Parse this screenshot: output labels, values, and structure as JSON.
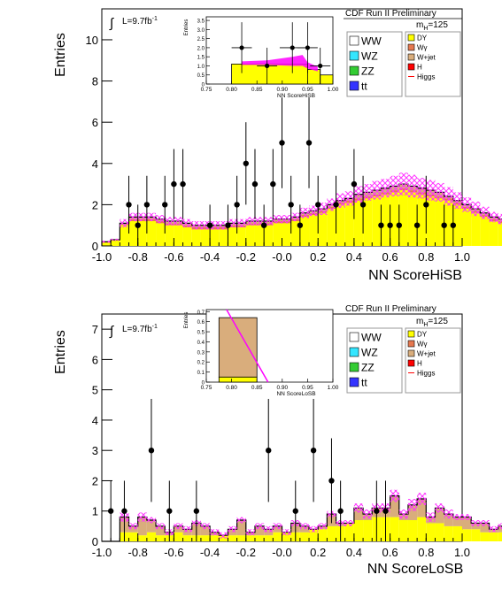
{
  "chart_data": [
    {
      "type": "bar",
      "xlabel": "NN ScoreHiSB",
      "ylabel": "Entries",
      "header": "CDF Run II Preliminary",
      "lumi_prefix": "L=9.7fb",
      "lumi_sup": "-1",
      "mass_prefix": "m",
      "mass_sub": "H",
      "mass_suffix": "=125",
      "xlim": [
        -1.0,
        1.0
      ],
      "ylim": [
        0,
        11.5
      ],
      "xticks": [
        "-1.0",
        "-0.8",
        "-0.6",
        "-0.4",
        "-0.2",
        "-0.0",
        "0.2",
        "0.4",
        "0.6",
        "0.8",
        "1.0"
      ],
      "yticks": [
        "0",
        "2",
        "4",
        "6",
        "8",
        "10"
      ],
      "bin_edges": [
        -1.0,
        0.05
      ],
      "series": [
        {
          "name": "DY",
          "color": "#ffff00",
          "values": [
            0.2,
            0.3,
            1.0,
            1.2,
            1.2,
            1.2,
            1.1,
            1.0,
            1.0,
            0.9,
            0.8,
            0.8,
            0.8,
            0.8,
            0.9,
            0.9,
            1.0,
            1.0,
            1.0,
            1.1,
            1.1,
            1.2,
            1.4,
            1.5,
            1.6,
            1.8,
            2.0,
            2.1,
            2.2,
            2.3,
            2.4,
            2.5,
            2.6,
            2.7,
            2.6,
            2.5,
            2.4,
            2.3,
            2.2,
            2.0,
            1.8,
            1.6,
            1.4,
            1.2,
            1.1,
            1.0,
            1.0,
            0.9,
            0.9,
            0.8,
            0.8,
            0.8,
            0.8,
            0.9,
            0.9,
            0.9,
            0.9,
            0.8,
            0.6,
            0.3
          ]
        },
        {
          "name": "Wγ",
          "color": "#e6784f",
          "values": [
            0.0,
            0.0,
            0.05,
            0.1,
            0.1,
            0.1,
            0.1,
            0.1,
            0.1,
            0.1,
            0.1,
            0.1,
            0.1,
            0.1,
            0.1,
            0.1,
            0.1,
            0.1,
            0.1,
            0.1,
            0.1,
            0.1,
            0.1,
            0.1,
            0.1,
            0.1,
            0.1,
            0.1,
            0.1,
            0.1,
            0.1,
            0.1,
            0.1,
            0.1,
            0.1,
            0.1,
            0.1,
            0.1,
            0.1,
            0.1,
            0.1,
            0.1,
            0.1,
            0.1,
            0.1,
            0.1,
            0.1,
            0.1,
            0.1,
            0.1,
            0.1,
            0.1,
            0.1,
            0.1,
            0.1,
            0.1,
            0.1,
            0.1,
            0.05,
            0.0
          ]
        },
        {
          "name": "W+jet",
          "color": "#d9ad7c",
          "values": [
            0.0,
            0.0,
            0.05,
            0.1,
            0.1,
            0.1,
            0.1,
            0.1,
            0.1,
            0.1,
            0.1,
            0.1,
            0.1,
            0.1,
            0.1,
            0.1,
            0.1,
            0.1,
            0.1,
            0.1,
            0.1,
            0.1,
            0.1,
            0.1,
            0.1,
            0.1,
            0.1,
            0.1,
            0.2,
            0.2,
            0.2,
            0.2,
            0.2,
            0.2,
            0.2,
            0.2,
            0.2,
            0.2,
            0.1,
            0.1,
            0.1,
            0.1,
            0.1,
            0.1,
            0.1,
            0.1,
            0.1,
            0.1,
            0.1,
            0.1,
            0.1,
            0.1,
            0.1,
            0.1,
            0.1,
            0.1,
            0.1,
            0.1,
            0.05,
            0.0
          ]
        }
      ],
      "band_halfwidth": [
        0.05,
        0.05,
        0.2,
        0.2,
        0.2,
        0.2,
        0.2,
        0.2,
        0.2,
        0.2,
        0.2,
        0.2,
        0.2,
        0.2,
        0.2,
        0.2,
        0.2,
        0.2,
        0.2,
        0.2,
        0.2,
        0.2,
        0.25,
        0.25,
        0.3,
        0.3,
        0.35,
        0.35,
        0.4,
        0.4,
        0.45,
        0.45,
        0.5,
        0.55,
        0.55,
        0.5,
        0.5,
        0.45,
        0.45,
        0.4,
        0.35,
        0.35,
        0.3,
        0.25,
        0.25,
        0.2,
        0.2,
        0.2,
        0.2,
        0.2,
        0.2,
        0.2,
        0.2,
        0.2,
        0.2,
        0.2,
        0.2,
        0.2,
        0.1,
        0.05
      ],
      "data_points": [
        {
          "x": -0.85,
          "y": 2,
          "err": 1.4
        },
        {
          "x": -0.8,
          "y": 1,
          "err": 1.0
        },
        {
          "x": -0.75,
          "y": 2,
          "err": 1.4
        },
        {
          "x": -0.65,
          "y": 2,
          "err": 1.4
        },
        {
          "x": -0.6,
          "y": 3,
          "err": 1.7
        },
        {
          "x": -0.55,
          "y": 3,
          "err": 1.7
        },
        {
          "x": -0.4,
          "y": 1,
          "err": 1.0
        },
        {
          "x": -0.3,
          "y": 1,
          "err": 1.0
        },
        {
          "x": -0.25,
          "y": 2,
          "err": 1.4
        },
        {
          "x": -0.2,
          "y": 4,
          "err": 2.0
        },
        {
          "x": -0.15,
          "y": 3,
          "err": 1.7
        },
        {
          "x": -0.1,
          "y": 1,
          "err": 1.0
        },
        {
          "x": -0.05,
          "y": 3,
          "err": 1.7
        },
        {
          "x": 0.0,
          "y": 5,
          "err": 2.2
        },
        {
          "x": 0.05,
          "y": 2,
          "err": 1.4
        },
        {
          "x": 0.1,
          "y": 1,
          "err": 1.0
        },
        {
          "x": 0.15,
          "y": 5,
          "err": 2.2
        },
        {
          "x": 0.2,
          "y": 2,
          "err": 1.4
        },
        {
          "x": 0.3,
          "y": 2,
          "err": 1.4
        },
        {
          "x": 0.4,
          "y": 3,
          "err": 1.7
        },
        {
          "x": 0.45,
          "y": 2,
          "err": 1.4
        },
        {
          "x": 0.55,
          "y": 1,
          "err": 1.0
        },
        {
          "x": 0.6,
          "y": 1,
          "err": 1.0
        },
        {
          "x": 0.65,
          "y": 1,
          "err": 1.0
        },
        {
          "x": 0.75,
          "y": 1,
          "err": 1.0
        },
        {
          "x": 0.8,
          "y": 2,
          "err": 1.4
        },
        {
          "x": 0.9,
          "y": 1,
          "err": 1.0
        },
        {
          "x": 0.95,
          "y": 1,
          "err": 1.0
        }
      ],
      "legend": [
        {
          "label": "WW",
          "color": "#ffffff"
        },
        {
          "label": "WZ",
          "color": "#33e6ff"
        },
        {
          "label": "ZZ",
          "color": "#33cc33"
        },
        {
          "label": "tt",
          "color": "#3333ff"
        },
        {
          "label": "DY",
          "color": "#ffff00"
        },
        {
          "label": "Wγ",
          "color": "#e6784f"
        },
        {
          "label": "W+jet",
          "color": "#d9ad7c"
        },
        {
          "label": "H",
          "color": "#ff0000"
        },
        {
          "label": "Higgs",
          "color": "#ff0000"
        }
      ],
      "inset": {
        "xlabel": "NN ScoreHiSB",
        "ylabel": "Entries",
        "xlim": [
          0.75,
          1.0
        ],
        "ylim": [
          0,
          3.7
        ],
        "xticks": [
          "0.75",
          "0.80",
          "0.85",
          "0.90",
          "0.95",
          "1.00"
        ],
        "yticks": [
          "0",
          "0.5",
          "1.0",
          "1.5",
          "2.0",
          "2.5",
          "3.0",
          "3.5"
        ],
        "bins": [
          {
            "x0": 0.8,
            "x1": 0.95,
            "yellow": 1.1,
            "total": 1.1
          },
          {
            "x0": 0.95,
            "x1": 0.975,
            "yellow": 0.8,
            "total": 0.8
          },
          {
            "x0": 0.975,
            "x1": 1.0,
            "yellow": 0.5,
            "total": 0.5
          }
        ],
        "band": [
          {
            "x": 0.82,
            "lo": 1.05,
            "hi": 1.25
          },
          {
            "x": 0.87,
            "lo": 1.05,
            "hi": 1.3
          },
          {
            "x": 0.92,
            "lo": 1.0,
            "hi": 1.5
          },
          {
            "x": 0.94,
            "lo": 1.0,
            "hi": 1.6
          },
          {
            "x": 0.95,
            "lo": 0.85,
            "hi": 1.2
          },
          {
            "x": 0.97,
            "lo": 0.7,
            "hi": 0.95
          }
        ],
        "data_points": [
          {
            "x": 0.82,
            "y": 2,
            "err": 1.4,
            "xerr": 0.02
          },
          {
            "x": 0.87,
            "y": 1,
            "err": 1.0,
            "xerr": 0.02
          },
          {
            "x": 0.92,
            "y": 2,
            "err": 1.4,
            "xerr": 0.025
          },
          {
            "x": 0.95,
            "y": 2,
            "err": 1.4,
            "xerr": 0.02
          },
          {
            "x": 0.975,
            "y": 1,
            "err": 1.0,
            "xerr": 0.02
          }
        ]
      }
    },
    {
      "type": "bar",
      "xlabel": "NN ScoreLoSB",
      "ylabel": "Entries",
      "header": "CDF Run II Preliminary",
      "lumi_prefix": "L=9.7fb",
      "lumi_sup": "-1",
      "mass_prefix": "m",
      "mass_sub": "H",
      "mass_suffix": "=125",
      "xlim": [
        -1.0,
        1.0
      ],
      "ylim": [
        0,
        7.5
      ],
      "xticks": [
        "-1.0",
        "-0.8",
        "-0.6",
        "-0.4",
        "-0.2",
        "-0.0",
        "0.2",
        "0.4",
        "0.6",
        "0.8",
        "1.0"
      ],
      "yticks": [
        "0",
        "1",
        "2",
        "3",
        "4",
        "5",
        "6",
        "7"
      ],
      "bin_edges": [
        -1.0,
        0.05
      ],
      "series": [
        {
          "name": "DY",
          "color": "#ffff00",
          "values": [
            0.0,
            0.0,
            0.3,
            0.3,
            0.2,
            0.3,
            0.2,
            0.2,
            0.3,
            0.2,
            0.2,
            0.2,
            0.2,
            0.2,
            0.2,
            0.2,
            0.2,
            0.2,
            0.2,
            0.3,
            0.3,
            0.3,
            0.3,
            0.4,
            0.4,
            0.5,
            0.5,
            0.6,
            0.7,
            0.7,
            0.8,
            0.8,
            0.8,
            0.7,
            0.7,
            0.8,
            0.6,
            0.6,
            0.5,
            0.5,
            0.4,
            0.4,
            0.3,
            0.3,
            0.3,
            0.3,
            0.3,
            0.3,
            0.3,
            0.2,
            0.2,
            0.2,
            0.2,
            0.0,
            0.0,
            0.0,
            0.0,
            0.0,
            0.0,
            0.0
          ]
        },
        {
          "name": "Wγ",
          "color": "#e6784f",
          "values": [
            0.0,
            0.0,
            0.0,
            0.0,
            0.0,
            0.0,
            0.0,
            0.0,
            0.0,
            0.0,
            0.0,
            0.0,
            0.0,
            0.0,
            0.0,
            0.0,
            0.0,
            0.0,
            0.0,
            0.0,
            0.0,
            0.0,
            0.0,
            0.0,
            0.0,
            0.0,
            0.0,
            0.0,
            0.0,
            0.0,
            0.0,
            0.0,
            0.0,
            0.0,
            0.0,
            0.0,
            0.0,
            0.0,
            0.0,
            0.0,
            0.0,
            0.0,
            0.0,
            0.0,
            0.0,
            0.0,
            0.0,
            0.0,
            0.0,
            0.0,
            0.0,
            0.0,
            0.0,
            0.0,
            0.0,
            0.0,
            0.0,
            0.0,
            0.0,
            0.0
          ]
        },
        {
          "name": "W+jet",
          "color": "#d9ad7c",
          "values": [
            0.0,
            0.0,
            0.5,
            0.2,
            0.6,
            0.4,
            0.3,
            0.1,
            0.2,
            0.2,
            0.4,
            0.3,
            0.1,
            0.0,
            0.2,
            0.5,
            0.1,
            0.3,
            0.2,
            0.2,
            0.0,
            0.3,
            0.2,
            0.0,
            0.1,
            0.4,
            0.1,
            0.0,
            0.4,
            0.2,
            0.3,
            0.3,
            0.7,
            0.2,
            0.5,
            0.6,
            0.2,
            0.5,
            0.4,
            0.3,
            0.4,
            0.2,
            0.3,
            0.1,
            0.2,
            0.6,
            0.3,
            0.2,
            0.0,
            0.0,
            0.2,
            0.8,
            0.0,
            0.0,
            0.0,
            0.6,
            0.0,
            0.0,
            0.0,
            0.0
          ]
        }
      ],
      "band_halfwidth": [
        0.0,
        0.0,
        0.15,
        0.1,
        0.15,
        0.1,
        0.1,
        0.1,
        0.1,
        0.1,
        0.1,
        0.1,
        0.1,
        0.1,
        0.1,
        0.1,
        0.1,
        0.1,
        0.1,
        0.1,
        0.1,
        0.1,
        0.1,
        0.1,
        0.1,
        0.1,
        0.1,
        0.1,
        0.15,
        0.15,
        0.15,
        0.15,
        0.2,
        0.15,
        0.2,
        0.2,
        0.15,
        0.15,
        0.15,
        0.1,
        0.1,
        0.1,
        0.1,
        0.1,
        0.1,
        0.15,
        0.1,
        0.1,
        0.1,
        0.1,
        0.1,
        0.15,
        0.0,
        0.0,
        0.0,
        0.15,
        0.0,
        0.0,
        0.0,
        0.0
      ],
      "data_points": [
        {
          "x": -0.95,
          "y": 1,
          "err": 1.0
        },
        {
          "x": -0.875,
          "y": 1,
          "err": 1.0
        },
        {
          "x": -0.725,
          "y": 3,
          "err": 1.7
        },
        {
          "x": -0.625,
          "y": 1,
          "err": 1.0
        },
        {
          "x": -0.475,
          "y": 1,
          "err": 1.0
        },
        {
          "x": -0.075,
          "y": 3,
          "err": 1.7
        },
        {
          "x": 0.075,
          "y": 1,
          "err": 1.0
        },
        {
          "x": 0.175,
          "y": 3,
          "err": 1.7
        },
        {
          "x": 0.275,
          "y": 2,
          "err": 1.4
        },
        {
          "x": 0.325,
          "y": 1,
          "err": 1.0
        },
        {
          "x": 0.525,
          "y": 1,
          "err": 1.0
        },
        {
          "x": 0.575,
          "y": 1,
          "err": 1.0
        }
      ],
      "legend": [
        {
          "label": "WW",
          "color": "#ffffff"
        },
        {
          "label": "WZ",
          "color": "#33e6ff"
        },
        {
          "label": "ZZ",
          "color": "#33cc33"
        },
        {
          "label": "tt",
          "color": "#3333ff"
        },
        {
          "label": "DY",
          "color": "#ffff00"
        },
        {
          "label": "Wγ",
          "color": "#e6784f"
        },
        {
          "label": "W+jet",
          "color": "#d9ad7c"
        },
        {
          "label": "H",
          "color": "#ff0000"
        },
        {
          "label": "Higgs",
          "color": "#ff0000"
        }
      ],
      "inset": {
        "xlabel": "NN ScoreLoSB",
        "ylabel": "Entries",
        "xlim": [
          0.75,
          1.0
        ],
        "ylim": [
          0,
          0.72
        ],
        "xticks": [
          "0.75",
          "0.80",
          "0.85",
          "0.90",
          "0.95",
          "1.00"
        ],
        "yticks": [
          "0",
          "0.1",
          "0.2",
          "0.3",
          "0.4",
          "0.5",
          "0.6",
          "0.7"
        ],
        "bins": [
          {
            "x0": 0.775,
            "x1": 0.85,
            "yellow": 0.05,
            "total": 0.64
          },
          {
            "x0": 0.85,
            "x1": 1.0,
            "yellow": 0.0,
            "total": 0.0
          }
        ],
        "band": [],
        "data_points": []
      }
    }
  ]
}
